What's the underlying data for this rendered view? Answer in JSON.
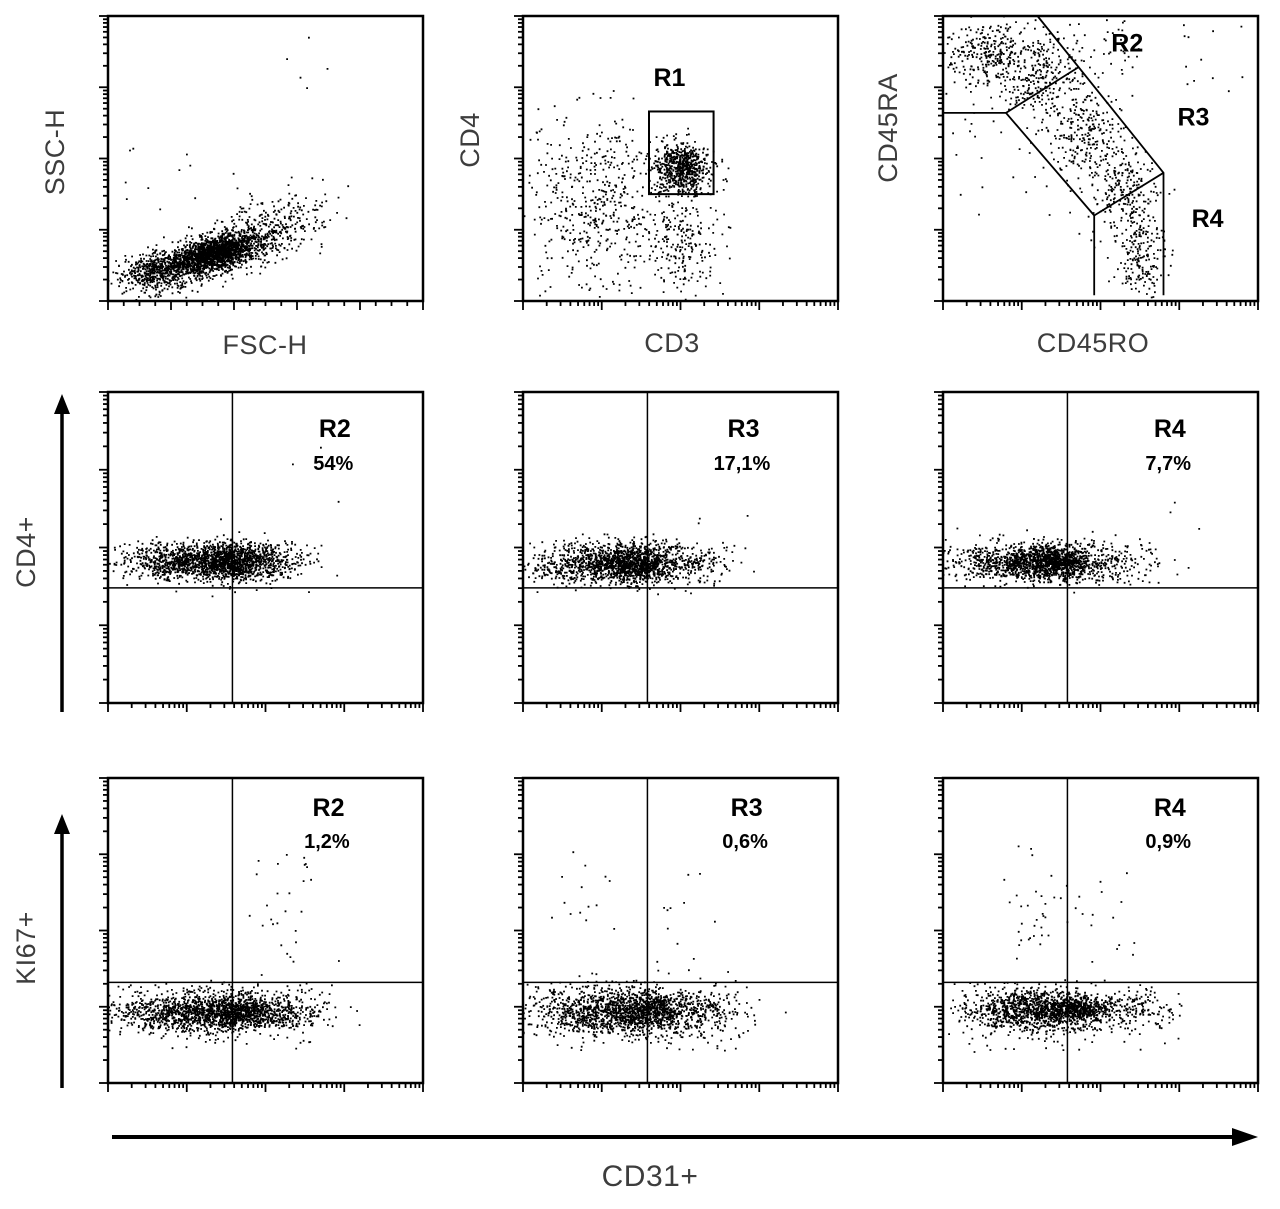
{
  "figure": {
    "kind": "flow-cytometry-panel",
    "background": "#ffffff",
    "ink_color": "#000000"
  },
  "axis_labels": {
    "ssc": "SSC-H",
    "fsc": "FSC-H",
    "cd4": "CD4",
    "cd3": "CD3",
    "cd45ra": "CD45RA",
    "cd45ro": "CD45RO",
    "cd4p": "CD4+",
    "ki67": "KI67+",
    "cd31": "CD31+"
  },
  "populations": [
    {
      "gate": "R2",
      "cd4_percent": "54%",
      "ki67_percent": "1,2%"
    },
    {
      "gate": "R3",
      "cd4_percent": "17,1%",
      "ki67_percent": "0,6%"
    },
    {
      "gate": "R4",
      "cd4_percent": "7,7%",
      "ki67_percent": "0,9%"
    }
  ],
  "chart_data": [
    {
      "id": "p0",
      "type": "scatter",
      "xlabel": "FSC-H",
      "ylabel": "SSC-H",
      "xscale": "linear",
      "yscale": "log",
      "seed": 11,
      "clusters": [
        {
          "cx": 0.3,
          "cy": 0.155,
          "sx": 0.115,
          "sy": 0.038,
          "n": 1500,
          "tilt": 0.28
        },
        {
          "cx": 0.34,
          "cy": 0.175,
          "sx": 0.055,
          "sy": 0.025,
          "n": 850,
          "tilt": 0.3
        },
        {
          "cx": 0.52,
          "cy": 0.27,
          "sx": 0.09,
          "sy": 0.055,
          "n": 240,
          "tilt": 0.25
        },
        {
          "cx": 0.14,
          "cy": 0.1,
          "sx": 0.05,
          "sy": 0.03,
          "n": 220
        },
        {
          "kind": "uniform",
          "x0": 0.55,
          "y0": 0.72,
          "x1": 0.78,
          "y1": 0.95,
          "n": 5
        },
        {
          "kind": "uniform",
          "x0": 0.04,
          "y0": 0.3,
          "x1": 0.6,
          "y1": 0.55,
          "n": 12
        }
      ],
      "gates": [],
      "annotations": []
    },
    {
      "id": "p1",
      "type": "scatter",
      "xlabel": "CD3",
      "ylabel": "CD4",
      "xscale": "log",
      "yscale": "log",
      "seed": 22,
      "clusters": [
        {
          "cx": 0.5,
          "cy": 0.47,
          "sx": 0.045,
          "sy": 0.042,
          "n": 650
        },
        {
          "cx": 0.22,
          "cy": 0.34,
          "sx": 0.1,
          "sy": 0.13,
          "n": 380
        },
        {
          "cx": 0.49,
          "cy": 0.22,
          "sx": 0.05,
          "sy": 0.1,
          "n": 190
        },
        {
          "kind": "uniform",
          "x0": 0.02,
          "y0": 0.02,
          "x1": 0.66,
          "y1": 0.6,
          "n": 150
        },
        {
          "kind": "uniform",
          "x0": 0.04,
          "y0": 0.55,
          "x1": 0.36,
          "y1": 0.74,
          "n": 25
        }
      ],
      "gates": [
        {
          "shape": "rect",
          "x0": 0.4,
          "y0": 0.375,
          "x1": 0.605,
          "y1": 0.665,
          "label": "R1"
        }
      ],
      "annotations": [
        {
          "text": "R1",
          "x": 0.465,
          "y": 0.755,
          "size": 25,
          "bold": true
        }
      ]
    },
    {
      "id": "p2",
      "type": "scatter",
      "xlabel": "CD45RO",
      "ylabel": "CD45RA",
      "xscale": "log",
      "yscale": "log",
      "seed": 33,
      "clusters": [
        {
          "cx": 0.13,
          "cy": 0.87,
          "sx": 0.07,
          "sy": 0.06,
          "n": 260
        },
        {
          "cx": 0.3,
          "cy": 0.78,
          "sx": 0.07,
          "sy": 0.07,
          "n": 260
        },
        {
          "cx": 0.45,
          "cy": 0.6,
          "sx": 0.055,
          "sy": 0.09,
          "n": 260
        },
        {
          "cx": 0.57,
          "cy": 0.38,
          "sx": 0.05,
          "sy": 0.09,
          "n": 230
        },
        {
          "cx": 0.63,
          "cy": 0.16,
          "sx": 0.045,
          "sy": 0.08,
          "n": 190
        },
        {
          "kind": "uniform",
          "x0": 0.02,
          "y0": 0.8,
          "x1": 0.62,
          "y1": 0.99,
          "n": 90
        },
        {
          "kind": "uniform",
          "x0": 0.72,
          "y0": 0.72,
          "x1": 0.97,
          "y1": 0.98,
          "n": 12
        },
        {
          "kind": "uniform",
          "x0": 0.02,
          "y0": 0.3,
          "x1": 0.4,
          "y1": 0.74,
          "n": 25
        }
      ],
      "gates": [
        {
          "shape": "polyline",
          "points": [
            [
              0.3,
              1.0
            ],
            [
              0.7,
              0.45
            ],
            [
              0.7,
              0.02
            ]
          ],
          "label": "outer-boundary"
        },
        {
          "shape": "polyline",
          "points": [
            [
              0.0,
              0.66
            ],
            [
              0.2,
              0.66
            ],
            [
              0.48,
              0.3
            ],
            [
              0.48,
              0.02
            ]
          ],
          "label": "inner-boundary"
        },
        {
          "shape": "polyline",
          "points": [
            [
              0.48,
              0.3
            ],
            [
              0.7,
              0.45
            ]
          ],
          "label": "r3-r4-divider"
        },
        {
          "shape": "polyline",
          "points": [
            [
              0.2,
              0.66
            ],
            [
              0.43,
              0.82
            ]
          ],
          "label": "r2-r3-divider"
        }
      ],
      "annotations": [
        {
          "text": "R2",
          "x": 0.585,
          "y": 0.875,
          "size": 25,
          "bold": true
        },
        {
          "text": "R3",
          "x": 0.795,
          "y": 0.615,
          "size": 25,
          "bold": true
        },
        {
          "text": "R4",
          "x": 0.84,
          "y": 0.26,
          "size": 25,
          "bold": true
        }
      ]
    },
    {
      "id": "p3",
      "type": "scatter",
      "xlabel": "CD31+",
      "ylabel": "CD4+",
      "xscale": "log",
      "yscale": "log",
      "seed": 44,
      "gate": "R2",
      "percent": "54%",
      "quadrant": {
        "x": 0.395,
        "y": 0.37
      },
      "clusters": [
        {
          "cx": 0.3,
          "cy": 0.455,
          "sx": 0.13,
          "sy": 0.03,
          "n": 1300
        },
        {
          "cx": 0.4,
          "cy": 0.46,
          "sx": 0.05,
          "sy": 0.028,
          "n": 500
        },
        {
          "cx": 0.52,
          "cy": 0.455,
          "sx": 0.06,
          "sy": 0.028,
          "n": 120
        },
        {
          "kind": "uniform",
          "x0": 0.02,
          "y0": 0.4,
          "x1": 0.62,
          "y1": 0.53,
          "n": 60
        },
        {
          "kind": "uniform",
          "x0": 0.55,
          "y0": 0.58,
          "x1": 0.76,
          "y1": 0.85,
          "n": 3
        }
      ],
      "gates": [],
      "annotations": [
        {
          "text": "R2",
          "x": 0.72,
          "y": 0.855,
          "size": 25,
          "bold": true
        },
        {
          "text": "54%",
          "x": 0.715,
          "y": 0.75,
          "size": 20,
          "bold": true
        }
      ]
    },
    {
      "id": "p4",
      "type": "scatter",
      "xlabel": "CD31+",
      "ylabel": "CD4+",
      "xscale": "log",
      "yscale": "log",
      "seed": 55,
      "gate": "R3",
      "percent": "17,1%",
      "quadrant": {
        "x": 0.395,
        "y": 0.37
      },
      "clusters": [
        {
          "cx": 0.28,
          "cy": 0.45,
          "sx": 0.13,
          "sy": 0.032,
          "n": 1200
        },
        {
          "cx": 0.36,
          "cy": 0.45,
          "sx": 0.05,
          "sy": 0.028,
          "n": 420
        },
        {
          "cx": 0.52,
          "cy": 0.45,
          "sx": 0.07,
          "sy": 0.03,
          "n": 130
        },
        {
          "kind": "uniform",
          "x0": 0.02,
          "y0": 0.38,
          "x1": 0.68,
          "y1": 0.53,
          "n": 60
        },
        {
          "kind": "uniform",
          "x0": 0.55,
          "y0": 0.55,
          "x1": 0.72,
          "y1": 0.62,
          "n": 3
        }
      ],
      "gates": [],
      "annotations": [
        {
          "text": "R3",
          "x": 0.7,
          "y": 0.855,
          "size": 25,
          "bold": true
        },
        {
          "text": "17,1%",
          "x": 0.695,
          "y": 0.75,
          "size": 20,
          "bold": true
        }
      ]
    },
    {
      "id": "p5",
      "type": "scatter",
      "xlabel": "CD31+",
      "ylabel": "CD4+",
      "xscale": "log",
      "yscale": "log",
      "seed": 66,
      "gate": "R4",
      "percent": "7,7%",
      "quadrant": {
        "x": 0.395,
        "y": 0.37
      },
      "clusters": [
        {
          "cx": 0.28,
          "cy": 0.455,
          "sx": 0.12,
          "sy": 0.03,
          "n": 1150
        },
        {
          "cx": 0.36,
          "cy": 0.455,
          "sx": 0.05,
          "sy": 0.026,
          "n": 450
        },
        {
          "cx": 0.54,
          "cy": 0.45,
          "sx": 0.08,
          "sy": 0.03,
          "n": 130
        },
        {
          "kind": "uniform",
          "x0": 0.02,
          "y0": 0.4,
          "x1": 0.7,
          "y1": 0.53,
          "n": 60
        },
        {
          "kind": "uniform",
          "x0": 0.68,
          "y0": 0.55,
          "x1": 0.82,
          "y1": 0.66,
          "n": 3
        }
      ],
      "gates": [],
      "annotations": [
        {
          "text": "R4",
          "x": 0.72,
          "y": 0.855,
          "size": 25,
          "bold": true
        },
        {
          "text": "7,7%",
          "x": 0.715,
          "y": 0.75,
          "size": 20,
          "bold": true
        }
      ]
    },
    {
      "id": "p6",
      "type": "scatter",
      "xlabel": "CD31+",
      "ylabel": "KI67+",
      "xscale": "log",
      "yscale": "log",
      "seed": 77,
      "gate": "R2",
      "percent": "1,2%",
      "quadrant": {
        "x": 0.395,
        "y": 0.33
      },
      "clusters": [
        {
          "cx": 0.3,
          "cy": 0.235,
          "sx": 0.14,
          "sy": 0.035,
          "n": 1300
        },
        {
          "cx": 0.42,
          "cy": 0.235,
          "sx": 0.06,
          "sy": 0.028,
          "n": 480
        },
        {
          "cx": 0.58,
          "cy": 0.23,
          "sx": 0.06,
          "sy": 0.03,
          "n": 140
        },
        {
          "kind": "uniform",
          "x0": 0.02,
          "y0": 0.12,
          "x1": 0.66,
          "y1": 0.33,
          "n": 90
        },
        {
          "cx": 0.56,
          "cy": 0.58,
          "sx": 0.07,
          "sy": 0.1,
          "n": 20
        },
        {
          "kind": "uniform",
          "x0": 0.3,
          "y0": 0.4,
          "x1": 0.7,
          "y1": 0.75,
          "n": 8
        }
      ],
      "gates": [],
      "annotations": [
        {
          "text": "R2",
          "x": 0.7,
          "y": 0.875,
          "size": 25,
          "bold": true
        },
        {
          "text": "1,2%",
          "x": 0.695,
          "y": 0.77,
          "size": 20,
          "bold": true
        }
      ]
    },
    {
      "id": "p7",
      "type": "scatter",
      "xlabel": "CD31+",
      "ylabel": "KI67+",
      "xscale": "log",
      "yscale": "log",
      "seed": 88,
      "gate": "R3",
      "percent": "0,6%",
      "quadrant": {
        "x": 0.395,
        "y": 0.33
      },
      "clusters": [
        {
          "cx": 0.3,
          "cy": 0.235,
          "sx": 0.14,
          "sy": 0.04,
          "n": 1250
        },
        {
          "cx": 0.4,
          "cy": 0.24,
          "sx": 0.06,
          "sy": 0.03,
          "n": 400
        },
        {
          "cx": 0.58,
          "cy": 0.24,
          "sx": 0.07,
          "sy": 0.035,
          "n": 150
        },
        {
          "kind": "uniform",
          "x0": 0.02,
          "y0": 0.1,
          "x1": 0.7,
          "y1": 0.34,
          "n": 90
        },
        {
          "cx": 0.22,
          "cy": 0.62,
          "sx": 0.06,
          "sy": 0.08,
          "n": 14
        },
        {
          "kind": "uniform",
          "x0": 0.4,
          "y0": 0.32,
          "x1": 0.66,
          "y1": 0.72,
          "n": 12
        }
      ],
      "gates": [],
      "annotations": [
        {
          "text": "R3",
          "x": 0.71,
          "y": 0.875,
          "size": 25,
          "bold": true
        },
        {
          "text": "0,6%",
          "x": 0.705,
          "y": 0.77,
          "size": 20,
          "bold": true
        }
      ]
    },
    {
      "id": "p8",
      "type": "scatter",
      "xlabel": "CD31+",
      "ylabel": "KI67+",
      "xscale": "log",
      "yscale": "log",
      "seed": 99,
      "gate": "R4",
      "percent": "0,9%",
      "quadrant": {
        "x": 0.395,
        "y": 0.33
      },
      "clusters": [
        {
          "cx": 0.3,
          "cy": 0.24,
          "sx": 0.12,
          "sy": 0.035,
          "n": 1150
        },
        {
          "cx": 0.42,
          "cy": 0.245,
          "sx": 0.055,
          "sy": 0.018,
          "n": 350
        },
        {
          "cx": 0.6,
          "cy": 0.24,
          "sx": 0.07,
          "sy": 0.03,
          "n": 140
        },
        {
          "kind": "uniform",
          "x0": 0.02,
          "y0": 0.1,
          "x1": 0.76,
          "y1": 0.34,
          "n": 90
        },
        {
          "cx": 0.28,
          "cy": 0.56,
          "sx": 0.07,
          "sy": 0.09,
          "n": 36
        },
        {
          "kind": "uniform",
          "x0": 0.46,
          "y0": 0.36,
          "x1": 0.64,
          "y1": 0.7,
          "n": 12
        }
      ],
      "gates": [],
      "annotations": [
        {
          "text": "R4",
          "x": 0.72,
          "y": 0.875,
          "size": 25,
          "bold": true
        },
        {
          "text": "0,9%",
          "x": 0.715,
          "y": 0.77,
          "size": 20,
          "bold": true
        }
      ]
    }
  ]
}
